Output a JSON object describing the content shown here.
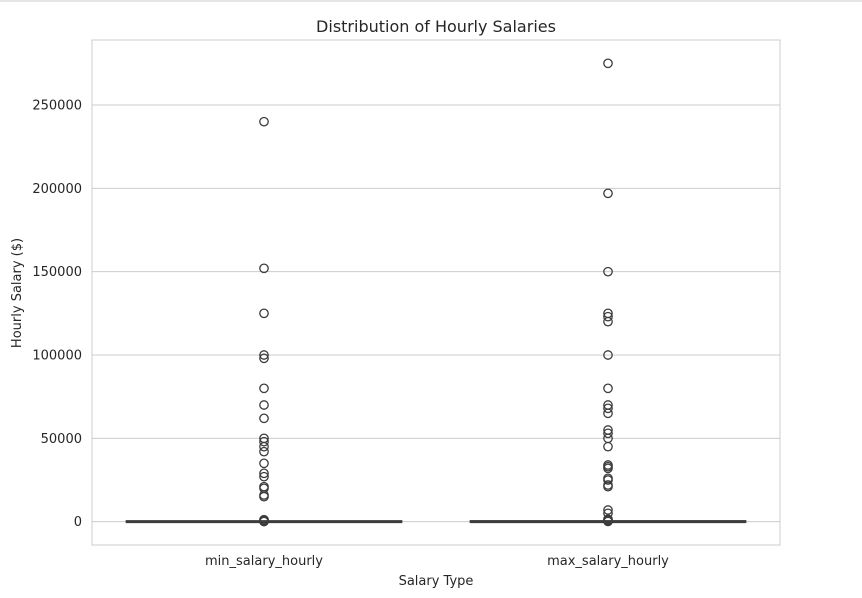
{
  "chart_data": {
    "type": "box",
    "title": "Distribution of Hourly Salaries",
    "xlabel": "Salary Type",
    "ylabel": "Hourly Salary ($)",
    "categories": [
      "min_salary_hourly",
      "max_salary_hourly"
    ],
    "ylim": [
      -14000,
      289000
    ],
    "yticks": [
      0,
      50000,
      100000,
      150000,
      200000,
      250000
    ],
    "ytick_labels": [
      "0",
      "50000",
      "100000",
      "150000",
      "200000",
      "250000"
    ],
    "grid": true,
    "box_color": "#3d3d3d",
    "boxes": [
      {
        "category": "min_salary_hourly",
        "q1": 15,
        "median": 20,
        "q3": 30,
        "whisker_low": 7,
        "whisker_high": 55,
        "outliers": [
          240000,
          152000,
          125000,
          100000,
          98000,
          80000,
          70000,
          62000,
          50000,
          48000,
          45000,
          42000,
          35000,
          29000,
          27000,
          21000,
          20000,
          16000,
          15000,
          1200,
          800,
          500,
          300,
          150,
          100
        ]
      },
      {
        "category": "max_salary_hourly",
        "q1": 25,
        "median": 40,
        "q3": 60,
        "whisker_low": 10,
        "whisker_high": 110,
        "outliers": [
          275000,
          197000,
          150000,
          125000,
          123000,
          120000,
          100000,
          80000,
          70000,
          68000,
          65000,
          55000,
          53000,
          50000,
          45000,
          34000,
          33000,
          32000,
          26000,
          25000,
          22000,
          21000,
          7000,
          5000,
          1500,
          1000,
          600,
          400,
          250,
          150
        ]
      }
    ]
  }
}
